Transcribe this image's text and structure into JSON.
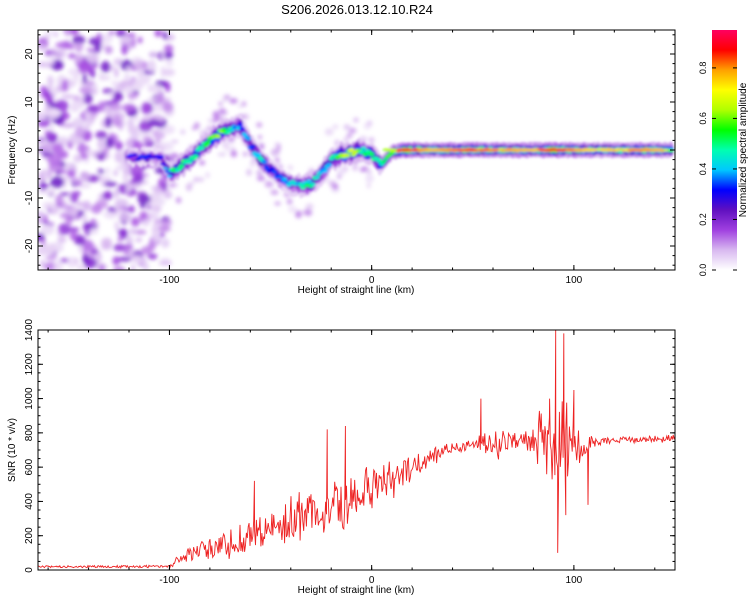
{
  "title": "S206.2026.013.12.10.R24",
  "chart_data": [
    {
      "type": "heatmap",
      "xlabel": "Height of straight line (km)",
      "ylabel": "Frequency (Hz)",
      "xlim": [
        -165,
        150
      ],
      "ylim": [
        -25,
        25
      ],
      "xticks": [
        -100,
        0,
        100
      ],
      "yticks": [
        -20,
        -10,
        0,
        10,
        20
      ],
      "xtick_labels": [
        "-100",
        "0",
        "100"
      ],
      "ytick_labels": [
        "-20",
        "-10",
        "0",
        "10",
        "20"
      ],
      "colorbar": {
        "label": "Normalized spectral amplitude",
        "range": [
          0,
          0.95
        ],
        "ticks": [
          0,
          0.2,
          0.4,
          0.6,
          0.8
        ],
        "tick_labels": [
          "0.0",
          "0.2",
          "0.4",
          "0.6",
          "0.8"
        ],
        "colors": [
          "#ffffff",
          "#d8b8f0",
          "#a040e0",
          "#6010c0",
          "#0000ff",
          "#00c8ff",
          "#00ffb0",
          "#00ff00",
          "#b0ff00",
          "#ffff00",
          "#ffa000",
          "#ff0000",
          "#ff0060"
        ]
      },
      "ridge": {
        "x": [
          -120,
          -110,
          -104,
          -100,
          -95,
          -90,
          -85,
          -80,
          -75,
          -70,
          -65,
          -60,
          -55,
          -50,
          -45,
          -40,
          -35,
          -30,
          -25,
          -20,
          -15,
          -10,
          -5,
          0,
          5,
          10,
          15,
          20,
          30,
          40,
          50,
          60,
          70,
          80,
          90,
          100,
          110,
          120,
          130,
          140,
          148
        ],
        "frequency": [
          -1.5,
          -1.5,
          -1.5,
          -5,
          -3.5,
          -2,
          0,
          2,
          3.5,
          4.5,
          5,
          1,
          -2,
          -4,
          -6,
          -7,
          -7.5,
          -7,
          -5,
          -2,
          -1,
          -0.5,
          0,
          -1,
          -3,
          -0.5,
          0,
          0,
          0,
          0,
          0,
          0,
          0,
          0,
          0,
          0,
          0,
          0,
          0,
          0,
          0
        ],
        "peak_amplitude": [
          0.3,
          0.35,
          0.3,
          0.45,
          0.55,
          0.5,
          0.5,
          0.55,
          0.6,
          0.5,
          0.35,
          0.4,
          0.45,
          0.35,
          0.35,
          0.4,
          0.45,
          0.5,
          0.4,
          0.45,
          0.6,
          0.7,
          0.55,
          0.5,
          0.5,
          0.65,
          0.9,
          0.85,
          0.75,
          0.8,
          0.85,
          0.8,
          0.78,
          0.75,
          0.9,
          0.8,
          0.72,
          0.75,
          0.8,
          0.78,
          0.7
        ]
      },
      "noise_region_x": [
        -165,
        -100
      ]
    },
    {
      "type": "line",
      "series": [
        {
          "name": "SNR",
          "color": "#ee2222"
        }
      ],
      "xlabel": "Height of straight line (km)",
      "ylabel": "SNR (10 * v/v)",
      "xlim": [
        -165,
        150
      ],
      "ylim": [
        0,
        1400
      ],
      "xticks": [
        -100,
        0,
        100
      ],
      "yticks": [
        0,
        200,
        400,
        600,
        800,
        1000,
        1200,
        1400
      ],
      "xtick_labels": [
        "-100",
        "0",
        "100"
      ],
      "ytick_labels": [
        "0",
        "200",
        "400",
        "600",
        "800",
        "1000",
        "1200",
        "1400"
      ],
      "trend": {
        "x": [
          -165,
          -100,
          -92,
          -85,
          -75,
          -65,
          -55,
          -45,
          -35,
          -25,
          -15,
          -5,
          5,
          15,
          25,
          35,
          45,
          55,
          65,
          75,
          85,
          95,
          105,
          115,
          125,
          135,
          150
        ],
        "snr": [
          20,
          20,
          80,
          120,
          140,
          170,
          220,
          270,
          310,
          350,
          390,
          440,
          500,
          560,
          630,
          690,
          720,
          740,
          750,
          760,
          750,
          740,
          740,
          750,
          760,
          760,
          770
        ]
      },
      "noise_amplitude": {
        "x": [
          -165,
          -100,
          -90,
          -60,
          -30,
          0,
          30,
          50,
          60,
          75,
          80,
          85,
          90,
          95,
          100,
          110,
          120,
          150
        ],
        "amp": [
          6,
          8,
          70,
          120,
          180,
          180,
          60,
          40,
          120,
          60,
          180,
          350,
          420,
          350,
          200,
          30,
          25,
          25
        ]
      },
      "spikes": [
        {
          "x": 88,
          "snr": 1000
        },
        {
          "x": 91,
          "snr": 1400
        },
        {
          "x": 92,
          "snr": 100
        },
        {
          "x": 95,
          "snr": 1380
        },
        {
          "x": 96,
          "snr": 320
        },
        {
          "x": 100,
          "snr": 1050
        },
        {
          "x": 107,
          "snr": 380
        },
        {
          "x": 54,
          "snr": 1000
        },
        {
          "x": -13,
          "snr": 840
        },
        {
          "x": -22,
          "snr": 820
        },
        {
          "x": -58,
          "snr": 520
        }
      ]
    }
  ]
}
